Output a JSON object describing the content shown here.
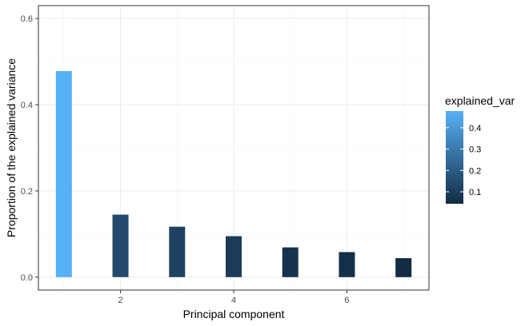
{
  "chart_data": {
    "type": "bar",
    "x": [
      1,
      2,
      3,
      4,
      5,
      6,
      7
    ],
    "values": [
      0.478,
      0.145,
      0.117,
      0.095,
      0.069,
      0.058,
      0.044
    ],
    "xlabel": "Principal component",
    "ylabel": "Proportion of the explained variance",
    "xlim": [
      0.55,
      7.45
    ],
    "ylim": [
      -0.03,
      0.63
    ],
    "x_ticks": [
      2,
      4,
      6
    ],
    "x_tick_labels": [
      "2",
      "4",
      "6"
    ],
    "y_ticks": [
      0.0,
      0.2,
      0.4,
      0.6
    ],
    "y_tick_labels": [
      "0.0",
      "0.2",
      "0.4",
      "0.6"
    ],
    "grid": true,
    "legend": {
      "title": "explained_var",
      "placement": "right",
      "type": "colorbar",
      "range": [
        0.044,
        0.478
      ],
      "ticks": [
        0.1,
        0.2,
        0.3,
        0.4
      ],
      "tick_labels": [
        "0.1",
        "0.2",
        "0.3",
        "0.4"
      ],
      "color_low": "#132B43",
      "color_high": "#56B1F7"
    }
  }
}
